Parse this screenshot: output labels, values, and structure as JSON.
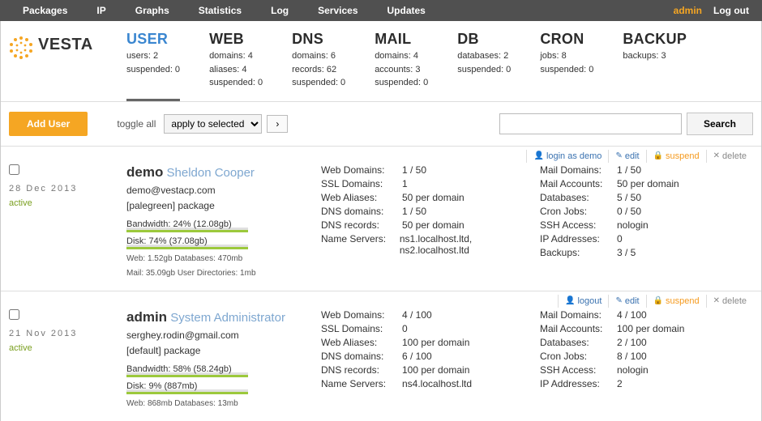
{
  "topnav": {
    "items": [
      "Packages",
      "IP",
      "Graphs",
      "Statistics",
      "Log",
      "Services",
      "Updates"
    ],
    "admin": "admin",
    "logout": "Log out"
  },
  "logo": "VESTA",
  "modules": [
    {
      "name": "USER",
      "active": true,
      "lines": [
        "users: 2",
        "suspended: 0"
      ]
    },
    {
      "name": "WEB",
      "active": false,
      "lines": [
        "domains: 4",
        "aliases: 4",
        "suspended: 0"
      ]
    },
    {
      "name": "DNS",
      "active": false,
      "lines": [
        "domains: 6",
        "records: 62",
        "suspended: 0"
      ]
    },
    {
      "name": "MAIL",
      "active": false,
      "lines": [
        "domains: 4",
        "accounts: 3",
        "suspended: 0"
      ]
    },
    {
      "name": "DB",
      "active": false,
      "lines": [
        "databases: 2",
        "suspended: 0"
      ]
    },
    {
      "name": "CRON",
      "active": false,
      "lines": [
        "jobs: 8",
        "suspended: 0"
      ]
    },
    {
      "name": "BACKUP",
      "active": false,
      "lines": [
        "backups: 3"
      ]
    }
  ],
  "toolbar": {
    "add_user": "Add User",
    "toggle": "toggle all",
    "apply": "apply to selected",
    "arrow": "›",
    "search": "Search"
  },
  "users": [
    {
      "actions": [
        {
          "icon": "👤",
          "label": "login as demo",
          "cls": ""
        },
        {
          "icon": "✎",
          "label": "edit",
          "cls": ""
        },
        {
          "icon": "🔒",
          "label": "suspend",
          "cls": "susp"
        },
        {
          "icon": "✕",
          "label": "delete",
          "cls": "del"
        }
      ],
      "date": "28 Dec 2013",
      "status": "active",
      "username": "demo",
      "fullname": "Sheldon Cooper",
      "email": "demo@vestacp.com",
      "package": "[palegreen] package",
      "bw_label": "Bandwidth: 24% (12.08gb)",
      "bw_pct": "24%",
      "disk_label": "Disk: 74% (37.08gb)",
      "disk_pct": "74%",
      "mini1": "Web: 1.52gb   Databases: 470mb",
      "mini2": "Mail: 35.09gb  User Directories: 1mb",
      "mid": [
        {
          "k": "Web Domains:",
          "v": "1 / 50"
        },
        {
          "k": "SSL Domains:",
          "v": "1"
        },
        {
          "k": "Web Aliases:",
          "v": "50 per domain"
        },
        {
          "k": "DNS domains:",
          "v": "1 / 50"
        },
        {
          "k": "DNS records:",
          "v": "50 per domain"
        },
        {
          "k": "Name Servers:",
          "v": "ns1.localhost.ltd, ns2.localhost.ltd"
        }
      ],
      "right": [
        {
          "k": "Mail Domains:",
          "v": "1 / 50"
        },
        {
          "k": "Mail Accounts:",
          "v": "50 per domain"
        },
        {
          "k": "Databases:",
          "v": "5 / 50"
        },
        {
          "k": "Cron Jobs:",
          "v": "0 / 50"
        },
        {
          "k": "SSH Access:",
          "v": "nologin"
        },
        {
          "k": "IP Addresses:",
          "v": "0"
        },
        {
          "k": "Backups:",
          "v": "3 / 5"
        }
      ]
    },
    {
      "actions": [
        {
          "icon": "👤",
          "label": "logout",
          "cls": ""
        },
        {
          "icon": "✎",
          "label": "edit",
          "cls": ""
        },
        {
          "icon": "🔒",
          "label": "suspend",
          "cls": "susp"
        },
        {
          "icon": "✕",
          "label": "delete",
          "cls": "del"
        }
      ],
      "date": "21 Nov 2013",
      "status": "active",
      "username": "admin",
      "fullname": "System Administrator",
      "email": "serghey.rodin@gmail.com",
      "package": "[default] package",
      "bw_label": "Bandwidth: 58% (58.24gb)",
      "bw_pct": "58%",
      "disk_label": "Disk: 9% (887mb)",
      "disk_pct": "9%",
      "mini1": "Web: 868mb   Databases: 13mb",
      "mini2": "",
      "mid": [
        {
          "k": "Web Domains:",
          "v": "4 / 100"
        },
        {
          "k": "SSL Domains:",
          "v": "0"
        },
        {
          "k": "Web Aliases:",
          "v": "100 per domain"
        },
        {
          "k": "DNS domains:",
          "v": "6 / 100"
        },
        {
          "k": "DNS records:",
          "v": "100 per domain"
        },
        {
          "k": "Name Servers:",
          "v": "ns4.localhost.ltd"
        }
      ],
      "right": [
        {
          "k": "Mail Domains:",
          "v": "4 / 100"
        },
        {
          "k": "Mail Accounts:",
          "v": "100 per domain"
        },
        {
          "k": "Databases:",
          "v": "2 / 100"
        },
        {
          "k": "Cron Jobs:",
          "v": "8 / 100"
        },
        {
          "k": "SSH Access:",
          "v": "nologin"
        },
        {
          "k": "IP Addresses:",
          "v": "2"
        }
      ]
    }
  ]
}
